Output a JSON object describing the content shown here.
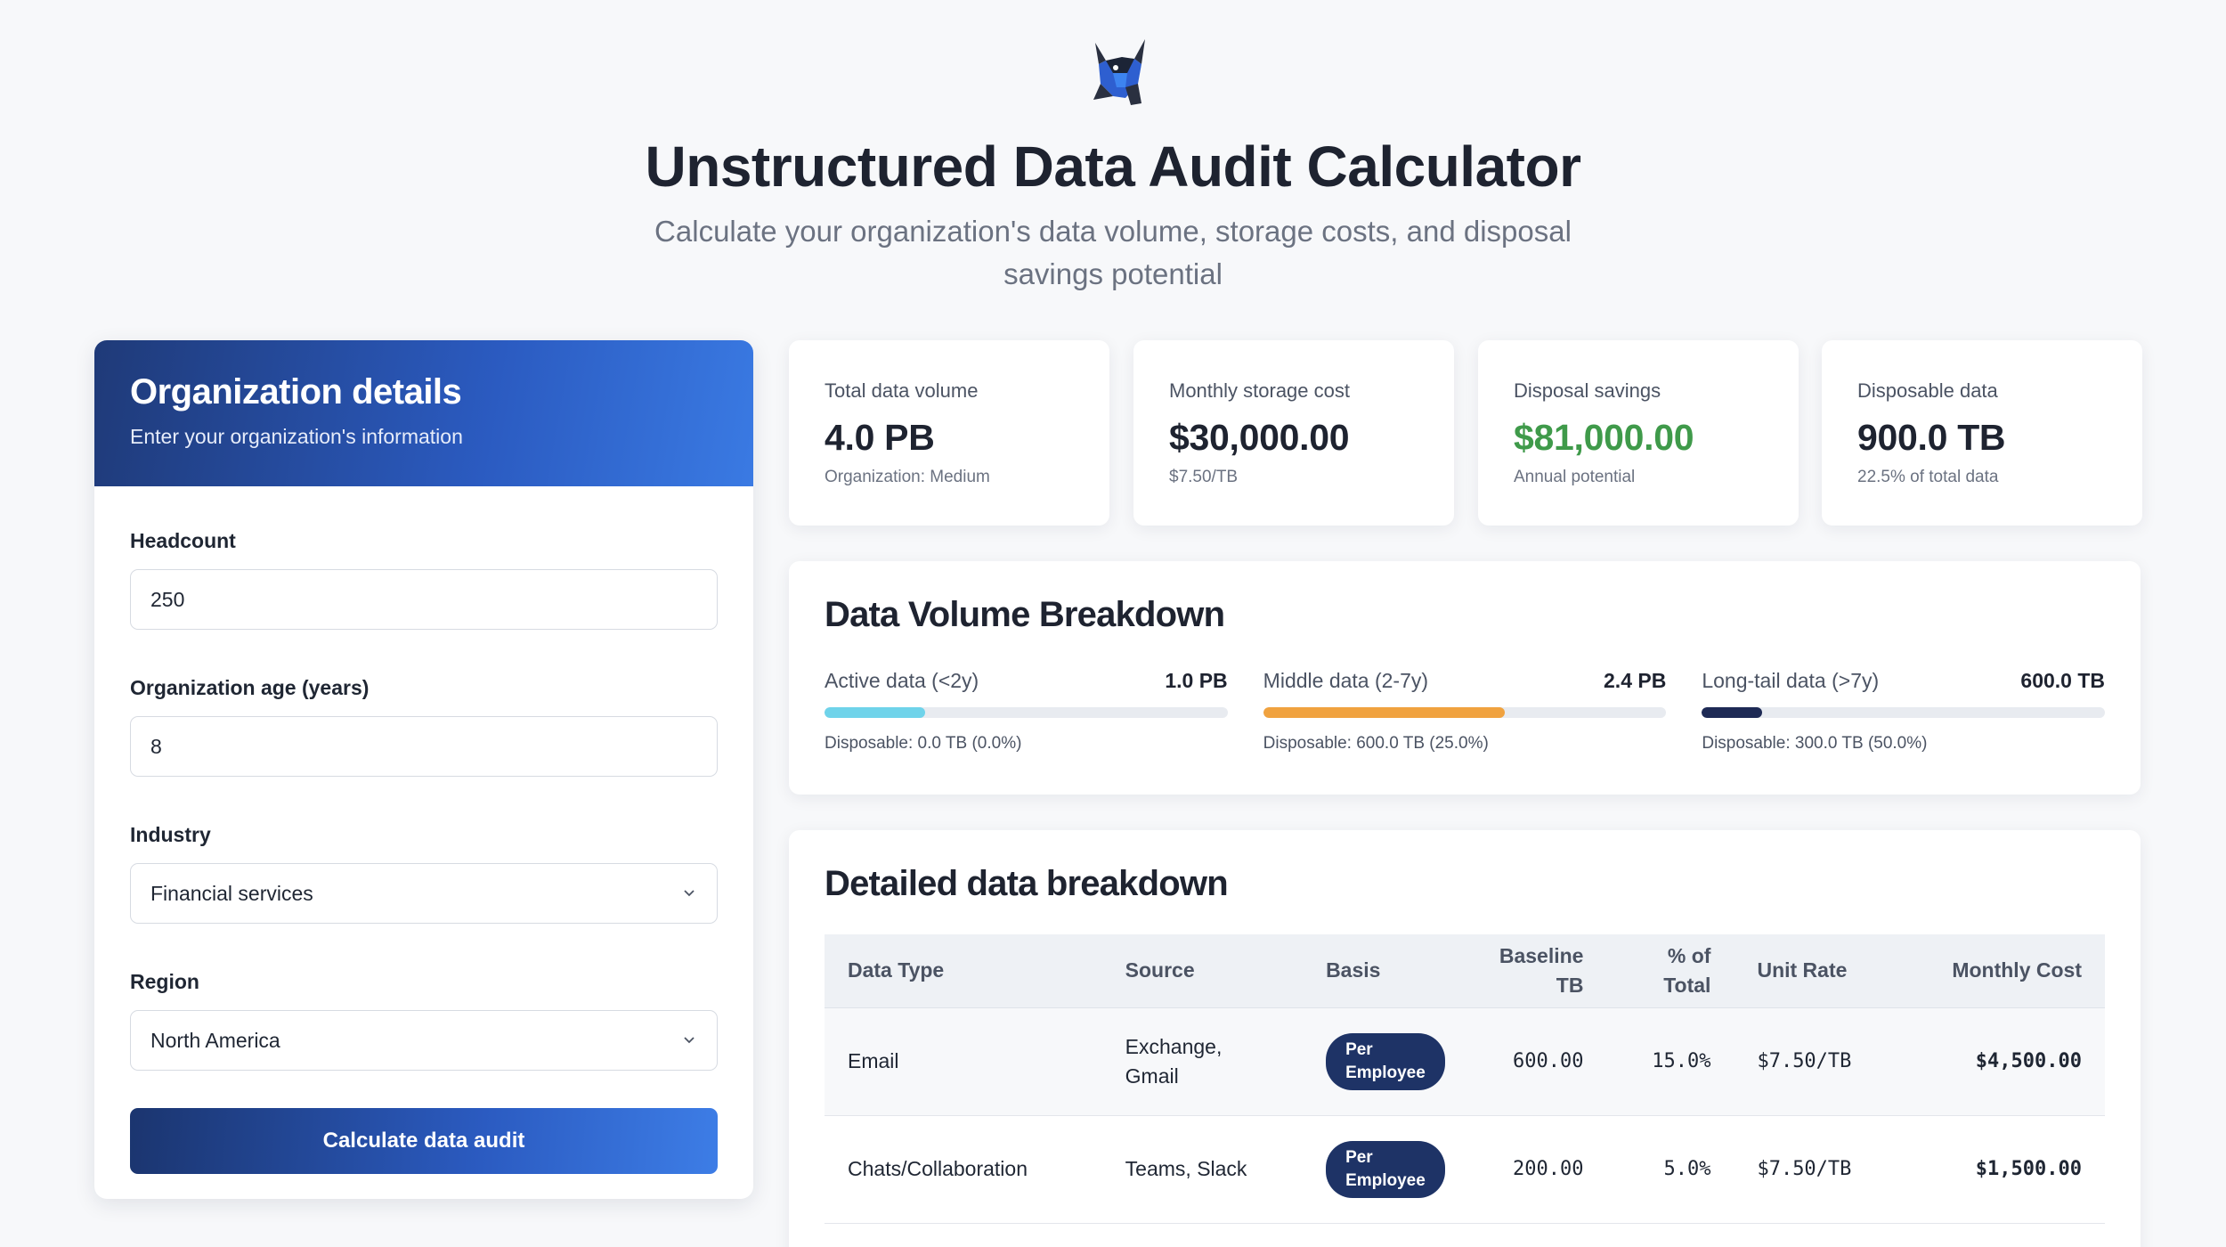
{
  "header": {
    "title": "Unstructured Data Audit Calculator",
    "subtitle": "Calculate your organization's data volume, storage costs, and disposal savings potential"
  },
  "org_panel": {
    "title": "Organization details",
    "subtitle": "Enter your organization's information",
    "fields": {
      "headcount": {
        "label": "Headcount",
        "value": "250"
      },
      "age": {
        "label": "Organization age (years)",
        "value": "8"
      },
      "industry": {
        "label": "Industry",
        "value": "Financial services"
      },
      "region": {
        "label": "Region",
        "value": "North America"
      }
    },
    "button_label": "Calculate data audit"
  },
  "stats": [
    {
      "label": "Total data volume",
      "value": "4.0 PB",
      "sub": "Organization: Medium"
    },
    {
      "label": "Monthly storage cost",
      "value": "$30,000.00",
      "sub": "$7.50/TB"
    },
    {
      "label": "Disposal savings",
      "value": "$81,000.00",
      "sub": "Annual potential"
    },
    {
      "label": "Disposable data",
      "value": "900.0 TB",
      "sub": "22.5% of total data"
    }
  ],
  "volume": {
    "title": "Data Volume Breakdown",
    "items": [
      {
        "name": "Active data (<2y)",
        "amount": "1.0 PB",
        "fill_pct": 25,
        "color": "#6fd3ea",
        "disposable": "Disposable: 0.0 TB (0.0%)"
      },
      {
        "name": "Middle data (2-7y)",
        "amount": "2.4 PB",
        "fill_pct": 60,
        "color": "#f0a23f",
        "disposable": "Disposable: 600.0 TB (25.0%)"
      },
      {
        "name": "Long-tail data (>7y)",
        "amount": "600.0 TB",
        "fill_pct": 15,
        "color": "#1e2a55",
        "disposable": "Disposable: 300.0 TB (50.0%)"
      }
    ]
  },
  "detail": {
    "title": "Detailed data breakdown",
    "headers": {
      "type": "Data Type",
      "source": "Source",
      "basis": "Basis",
      "baseline_a": "Baseline",
      "baseline_b": "TB",
      "pct_a": "% of",
      "pct_b": "Total",
      "rate": "Unit Rate",
      "cost": "Monthly Cost"
    },
    "rows": [
      {
        "type": "Email",
        "source_a": "Exchange,",
        "source_b": "Gmail",
        "basis_a": "Per",
        "basis_b": "Employee",
        "baseline": "600.00",
        "pct": "15.0%",
        "rate": "$7.50/TB",
        "cost": "$4,500.00"
      },
      {
        "type": "Chats/Collaboration",
        "source_a": "Teams, Slack",
        "source_b": "",
        "basis_a": "Per",
        "basis_b": "Employee",
        "baseline": "200.00",
        "pct": "5.0%",
        "rate": "$7.50/TB",
        "cost": "$1,500.00"
      }
    ]
  },
  "colors": {
    "accent": "#2b5bc1",
    "navy": "#1e3366",
    "green": "#3f9a4a"
  }
}
